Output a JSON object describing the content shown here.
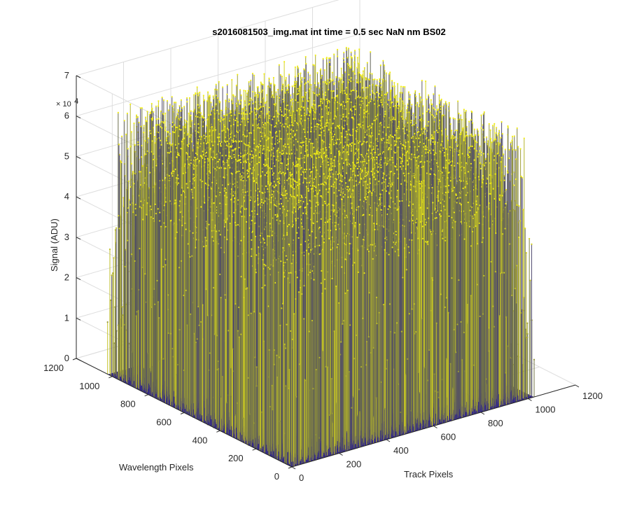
{
  "chart_data": {
    "type": "surface",
    "title": "s2016081503_img.mat int time = 0.5 sec  NaN nm BS02",
    "xlabel": "Track Pixels",
    "ylabel": "Wavelength Pixels",
    "zlabel": "Signal (ADU)",
    "z_multiplier": "× 10^4",
    "z_multiplier_base": "× 10",
    "z_multiplier_exp": "4",
    "xlim": [
      0,
      1200
    ],
    "ylim": [
      0,
      1200
    ],
    "zlim": [
      0,
      7
    ],
    "x_ticks": [
      "0",
      "200",
      "400",
      "600",
      "800",
      "1000",
      "1200"
    ],
    "y_ticks": [
      "0",
      "200",
      "400",
      "600",
      "800",
      "1000",
      "1200"
    ],
    "z_ticks": [
      "0",
      "1",
      "2",
      "3",
      "4",
      "5",
      "6",
      "7"
    ],
    "data_extent": {
      "x": [
        0,
        1024
      ],
      "y": [
        0,
        1024
      ]
    },
    "baseline_signal": 0,
    "spike_signal_range": [
      4.2,
      6.6
    ],
    "colors": {
      "low": "#352a87",
      "mid": "#6f7346",
      "high": "#f2ee14",
      "grid": "#dedede",
      "axis": "#262626"
    },
    "grid": true,
    "view": "3D azimuth -37.5, elevation 30"
  }
}
